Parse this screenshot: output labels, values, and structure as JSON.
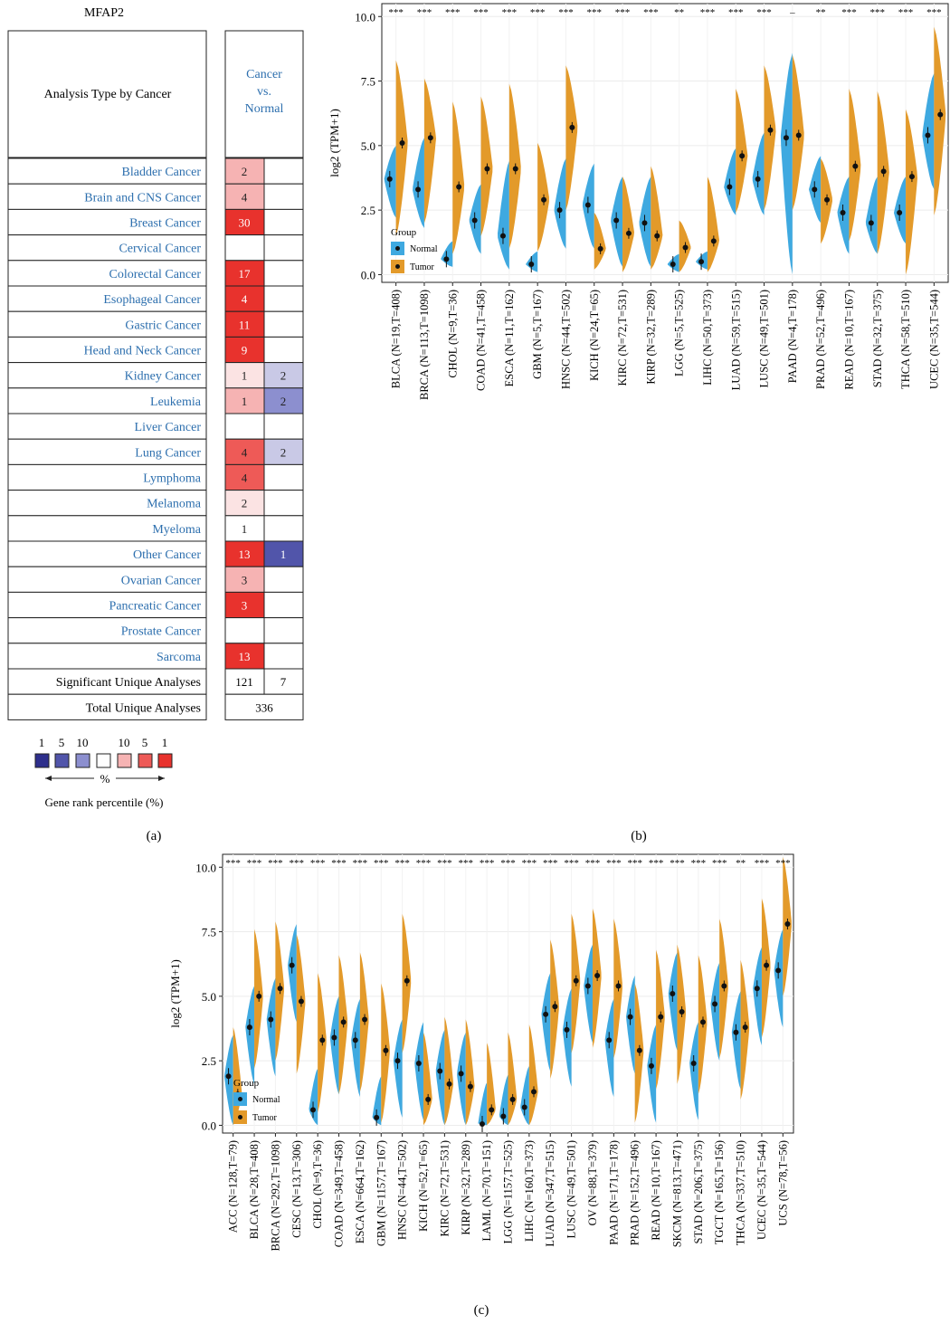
{
  "panel_a": {
    "gene": "MFAP2",
    "header_left": "Analysis Type by Cancer",
    "header_right": "Cancer\nvs.\nNormal",
    "rows": [
      {
        "label": "Bladder Cancer",
        "up": "2",
        "up_color": "#f6b3b3",
        "down": "",
        "down_color": "#ffffff"
      },
      {
        "label": "Brain and CNS Cancer",
        "up": "4",
        "up_color": "#f6b3b3",
        "down": "",
        "down_color": "#ffffff"
      },
      {
        "label": "Breast Cancer",
        "up": "30",
        "up_color": "#e8322d",
        "down": "",
        "down_color": "#ffffff"
      },
      {
        "label": "Cervical Cancer",
        "up": "",
        "up_color": "#ffffff",
        "down": "",
        "down_color": "#ffffff"
      },
      {
        "label": "Colorectal Cancer",
        "up": "17",
        "up_color": "#e8322d",
        "down": "",
        "down_color": "#ffffff"
      },
      {
        "label": "Esophageal Cancer",
        "up": "4",
        "up_color": "#e8322d",
        "down": "",
        "down_color": "#ffffff"
      },
      {
        "label": "Gastric Cancer",
        "up": "11",
        "up_color": "#e8322d",
        "down": "",
        "down_color": "#ffffff"
      },
      {
        "label": "Head and Neck Cancer",
        "up": "9",
        "up_color": "#e8322d",
        "down": "",
        "down_color": "#ffffff"
      },
      {
        "label": "Kidney Cancer",
        "up": "1",
        "up_color": "#fbe3e3",
        "down": "2",
        "down_color": "#c9c9e6"
      },
      {
        "label": "Leukemia",
        "up": "1",
        "up_color": "#f6b3b3",
        "down": "2",
        "down_color": "#8c8fcf"
      },
      {
        "label": "Liver Cancer",
        "up": "",
        "up_color": "#ffffff",
        "down": "",
        "down_color": "#ffffff"
      },
      {
        "label": "Lung Cancer",
        "up": "4",
        "up_color": "#ee5a57",
        "down": "2",
        "down_color": "#c9c9e6"
      },
      {
        "label": "Lymphoma",
        "up": "4",
        "up_color": "#ee5a57",
        "down": "",
        "down_color": "#ffffff"
      },
      {
        "label": "Melanoma",
        "up": "2",
        "up_color": "#fbe3e3",
        "down": "",
        "down_color": "#ffffff"
      },
      {
        "label": "Myeloma",
        "up": "1",
        "up_color": "#ffffff",
        "down": "",
        "down_color": "#ffffff"
      },
      {
        "label": "Other Cancer",
        "up": "13",
        "up_color": "#e8322d",
        "down": "1",
        "down_color": "#5155aa"
      },
      {
        "label": "Ovarian Cancer",
        "up": "3",
        "up_color": "#f6b3b3",
        "down": "",
        "down_color": "#ffffff"
      },
      {
        "label": "Pancreatic Cancer",
        "up": "3",
        "up_color": "#e8322d",
        "down": "",
        "down_color": "#ffffff"
      },
      {
        "label": "Prostate Cancer",
        "up": "",
        "up_color": "#ffffff",
        "down": "",
        "down_color": "#ffffff"
      },
      {
        "label": "Sarcoma",
        "up": "13",
        "up_color": "#e8322d",
        "down": "",
        "down_color": "#ffffff"
      }
    ],
    "significant_label": "Significant Unique Analyses",
    "significant_up": "121",
    "significant_down": "7",
    "total_label": "Total Unique Analyses",
    "total_value": "336",
    "legend_numbers": [
      "1",
      "5",
      "10",
      "10",
      "5",
      "1"
    ],
    "legend_colors": [
      "#2e2f8c",
      "#5155aa",
      "#8c8fcf",
      "#ffffff",
      "#f6b3b3",
      "#ee5a57",
      "#e8322d"
    ],
    "legend_percent": "%",
    "legend_caption": "Gene rank percentile (%)",
    "label_color": "#2d6fae",
    "caption": "(a)"
  },
  "chart_data": [
    {
      "type": "violin",
      "caption": "(b)",
      "ylabel": "log2 (TPM+1)",
      "ylim": [
        -0.3,
        10.5
      ],
      "yticks": [
        "0.0",
        "2.5",
        "5.0",
        "7.5",
        "10.0"
      ],
      "legend_title": "Group",
      "legend_entries": [
        "Normal",
        "Tumor"
      ],
      "colors": {
        "normal": "#3fa9e0",
        "tumor": "#e39a2a"
      },
      "categories": [
        "BLCA (N=19,T=408)",
        "BRCA (N=113,T=1098)",
        "CHOL (N=9,T=36)",
        "COAD (N=41,T=458)",
        "ESCA (N=11,T=162)",
        "GBM (N=5,T=167)",
        "HNSC (N=44,T=502)",
        "KICH (N=24,T=65)",
        "KIRC (N=72,T=531)",
        "KIRP (N=32,T=289)",
        "LGG (N=5,T=525)",
        "LIHC (N=50,T=373)",
        "LUAD (N=59,T=515)",
        "LUSC (N=49,T=501)",
        "PAAD (N=4,T=178)",
        "PRAD (N=52,T=496)",
        "READ (N=10,T=167)",
        "STAD (N=32,T=375)",
        "THCA (N=58,T=510)",
        "UCEC (N=35,T=544)"
      ],
      "significance": [
        "***",
        "***",
        "***",
        "***",
        "***",
        "***",
        "***",
        "***",
        "***",
        "***",
        "**",
        "***",
        "***",
        "***",
        "–",
        "**",
        "***",
        "***",
        "***",
        "***"
      ],
      "normal_median": [
        3.7,
        3.3,
        0.6,
        2.1,
        1.5,
        0.4,
        2.5,
        2.7,
        2.1,
        2.0,
        0.4,
        0.5,
        3.4,
        3.7,
        5.3,
        3.3,
        2.4,
        2.0,
        2.4,
        5.4
      ],
      "tumor_median": [
        5.1,
        5.3,
        3.4,
        4.1,
        4.1,
        2.9,
        5.7,
        1.0,
        1.6,
        1.5,
        1.05,
        1.3,
        4.6,
        5.6,
        5.4,
        2.9,
        4.2,
        4.0,
        3.8,
        6.2
      ],
      "normal_range": [
        [
          2.2,
          5.0
        ],
        [
          1.8,
          5.3
        ],
        [
          0.3,
          1.3
        ],
        [
          0.8,
          3.5
        ],
        [
          0.2,
          4.4
        ],
        [
          0.1,
          0.9
        ],
        [
          1.0,
          4.5
        ],
        [
          1.0,
          4.3
        ],
        [
          0.3,
          3.8
        ],
        [
          0.3,
          3.8
        ],
        [
          0.1,
          0.8
        ],
        [
          0.2,
          0.9
        ],
        [
          2.3,
          4.9
        ],
        [
          2.3,
          5.5
        ],
        [
          0.0,
          8.6
        ],
        [
          2.0,
          4.6
        ],
        [
          0.8,
          3.8
        ],
        [
          0.8,
          3.8
        ],
        [
          1.2,
          3.8
        ],
        [
          3.3,
          7.8
        ]
      ],
      "tumor_range": [
        [
          1.5,
          8.3
        ],
        [
          2.0,
          7.6
        ],
        [
          0.8,
          6.7
        ],
        [
          1.5,
          6.9
        ],
        [
          1.0,
          7.4
        ],
        [
          0.9,
          5.1
        ],
        [
          2.5,
          8.1
        ],
        [
          0.2,
          2.4
        ],
        [
          0.1,
          3.8
        ],
        [
          0.2,
          4.2
        ],
        [
          0.1,
          2.1
        ],
        [
          0.1,
          3.8
        ],
        [
          2.4,
          7.2
        ],
        [
          2.5,
          8.1
        ],
        [
          2.5,
          8.5
        ],
        [
          1.2,
          4.5
        ],
        [
          1.3,
          7.2
        ],
        [
          0.8,
          7.1
        ],
        [
          0.0,
          6.4
        ],
        [
          2.3,
          9.6
        ]
      ]
    },
    {
      "type": "violin",
      "caption": "(c)",
      "ylabel": "log2 (TPM+1)",
      "ylim": [
        -0.3,
        10.5
      ],
      "yticks": [
        "0.0",
        "2.5",
        "5.0",
        "7.5",
        "10.0"
      ],
      "legend_title": "Group",
      "legend_entries": [
        "Normal",
        "Tumor"
      ],
      "colors": {
        "normal": "#3fa9e0",
        "tumor": "#e39a2a"
      },
      "categories": [
        "ACC (N=128,T=79)",
        "BLCA (N=28,T=408)",
        "BRCA (N=292,T=1098)",
        "CESC (N=13,T=306)",
        "CHOL (N=9,T=36)",
        "COAD (N=349,T=458)",
        "ESCA (N=664,T=162)",
        "GBM (N=1157,T=167)",
        "HNSC (N=44,T=502)",
        "KICH (N=52,T=65)",
        "KIRC (N=72,T=531)",
        "KIRP (N=32,T=289)",
        "LAML (N=70,T=151)",
        "LGG (N=1157,T=525)",
        "LIHC (N=160,T=373)",
        "LUAD (N=347,T=515)",
        "LUSC (N=49,T=501)",
        "OV (N=88,T=379)",
        "PAAD (N=171,T=178)",
        "PRAD (N=152,T=496)",
        "READ (N=10,T=167)",
        "SKCM (N=813,T=471)",
        "STAD (N=206,T=375)",
        "TGCT (N=165,T=156)",
        "THCA (N=337,T=510)",
        "UCEC (N=35,T=544)",
        "UCS (N=78,T=56)"
      ],
      "significance": [
        "***",
        "***",
        "***",
        "***",
        "***",
        "***",
        "***",
        "***",
        "***",
        "***",
        "***",
        "***",
        "***",
        "***",
        "***",
        "***",
        "***",
        "***",
        "***",
        "***",
        "***",
        "***",
        "***",
        "***",
        "**",
        "***",
        "***"
      ],
      "normal_median": [
        1.9,
        3.8,
        4.1,
        6.2,
        0.6,
        3.4,
        3.3,
        0.3,
        2.5,
        2.4,
        2.1,
        2.0,
        0.05,
        0.35,
        0.7,
        4.3,
        3.7,
        5.4,
        3.3,
        4.2,
        2.3,
        5.1,
        2.4,
        4.7,
        3.6,
        5.3,
        6.0
      ],
      "tumor_median": [
        1.2,
        5.0,
        5.3,
        4.8,
        3.3,
        4.0,
        4.1,
        2.9,
        5.6,
        1.0,
        1.6,
        1.5,
        0.6,
        1.0,
        1.3,
        4.6,
        5.6,
        5.8,
        5.4,
        2.9,
        4.2,
        4.4,
        4.0,
        5.4,
        3.8,
        6.2,
        7.8
      ]
    }
  ]
}
